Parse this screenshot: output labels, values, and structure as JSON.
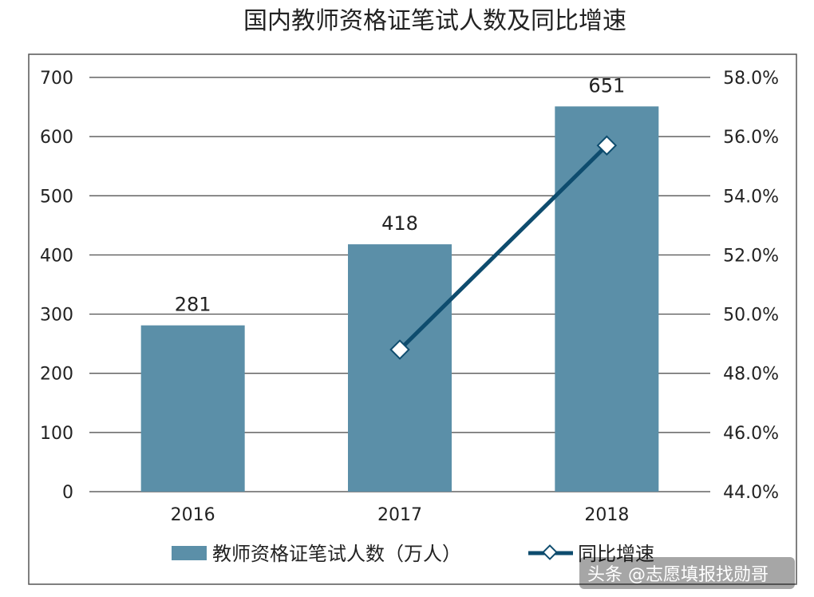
{
  "chart_data": {
    "type": "bar",
    "title": "国内教师资格证笔试人数及同比增速",
    "categories": [
      "2016",
      "2017",
      "2018"
    ],
    "series": [
      {
        "name": "教师资格证笔试人数（万人）",
        "type": "bar",
        "axis": "left",
        "values": [
          281,
          418,
          651
        ],
        "color": "#5b8fa8"
      },
      {
        "name": "同比增速",
        "type": "line",
        "axis": "right",
        "values": [
          null,
          48.8,
          55.7
        ],
        "color": "#0e4c6e"
      }
    ],
    "left_axis": {
      "ylim": [
        0,
        700
      ],
      "ticks": [
        "0",
        "100",
        "200",
        "300",
        "400",
        "500",
        "600",
        "700"
      ]
    },
    "right_axis": {
      "ylim": [
        44,
        58
      ],
      "ticks": [
        "44.0%",
        "46.0%",
        "48.0%",
        "50.0%",
        "52.0%",
        "54.0%",
        "56.0%",
        "58.0%"
      ]
    },
    "grid": true,
    "legend": "bottom",
    "data_labels": [
      "281",
      "418",
      "651"
    ]
  },
  "watermark": "头条 @志愿填报找勋哥"
}
